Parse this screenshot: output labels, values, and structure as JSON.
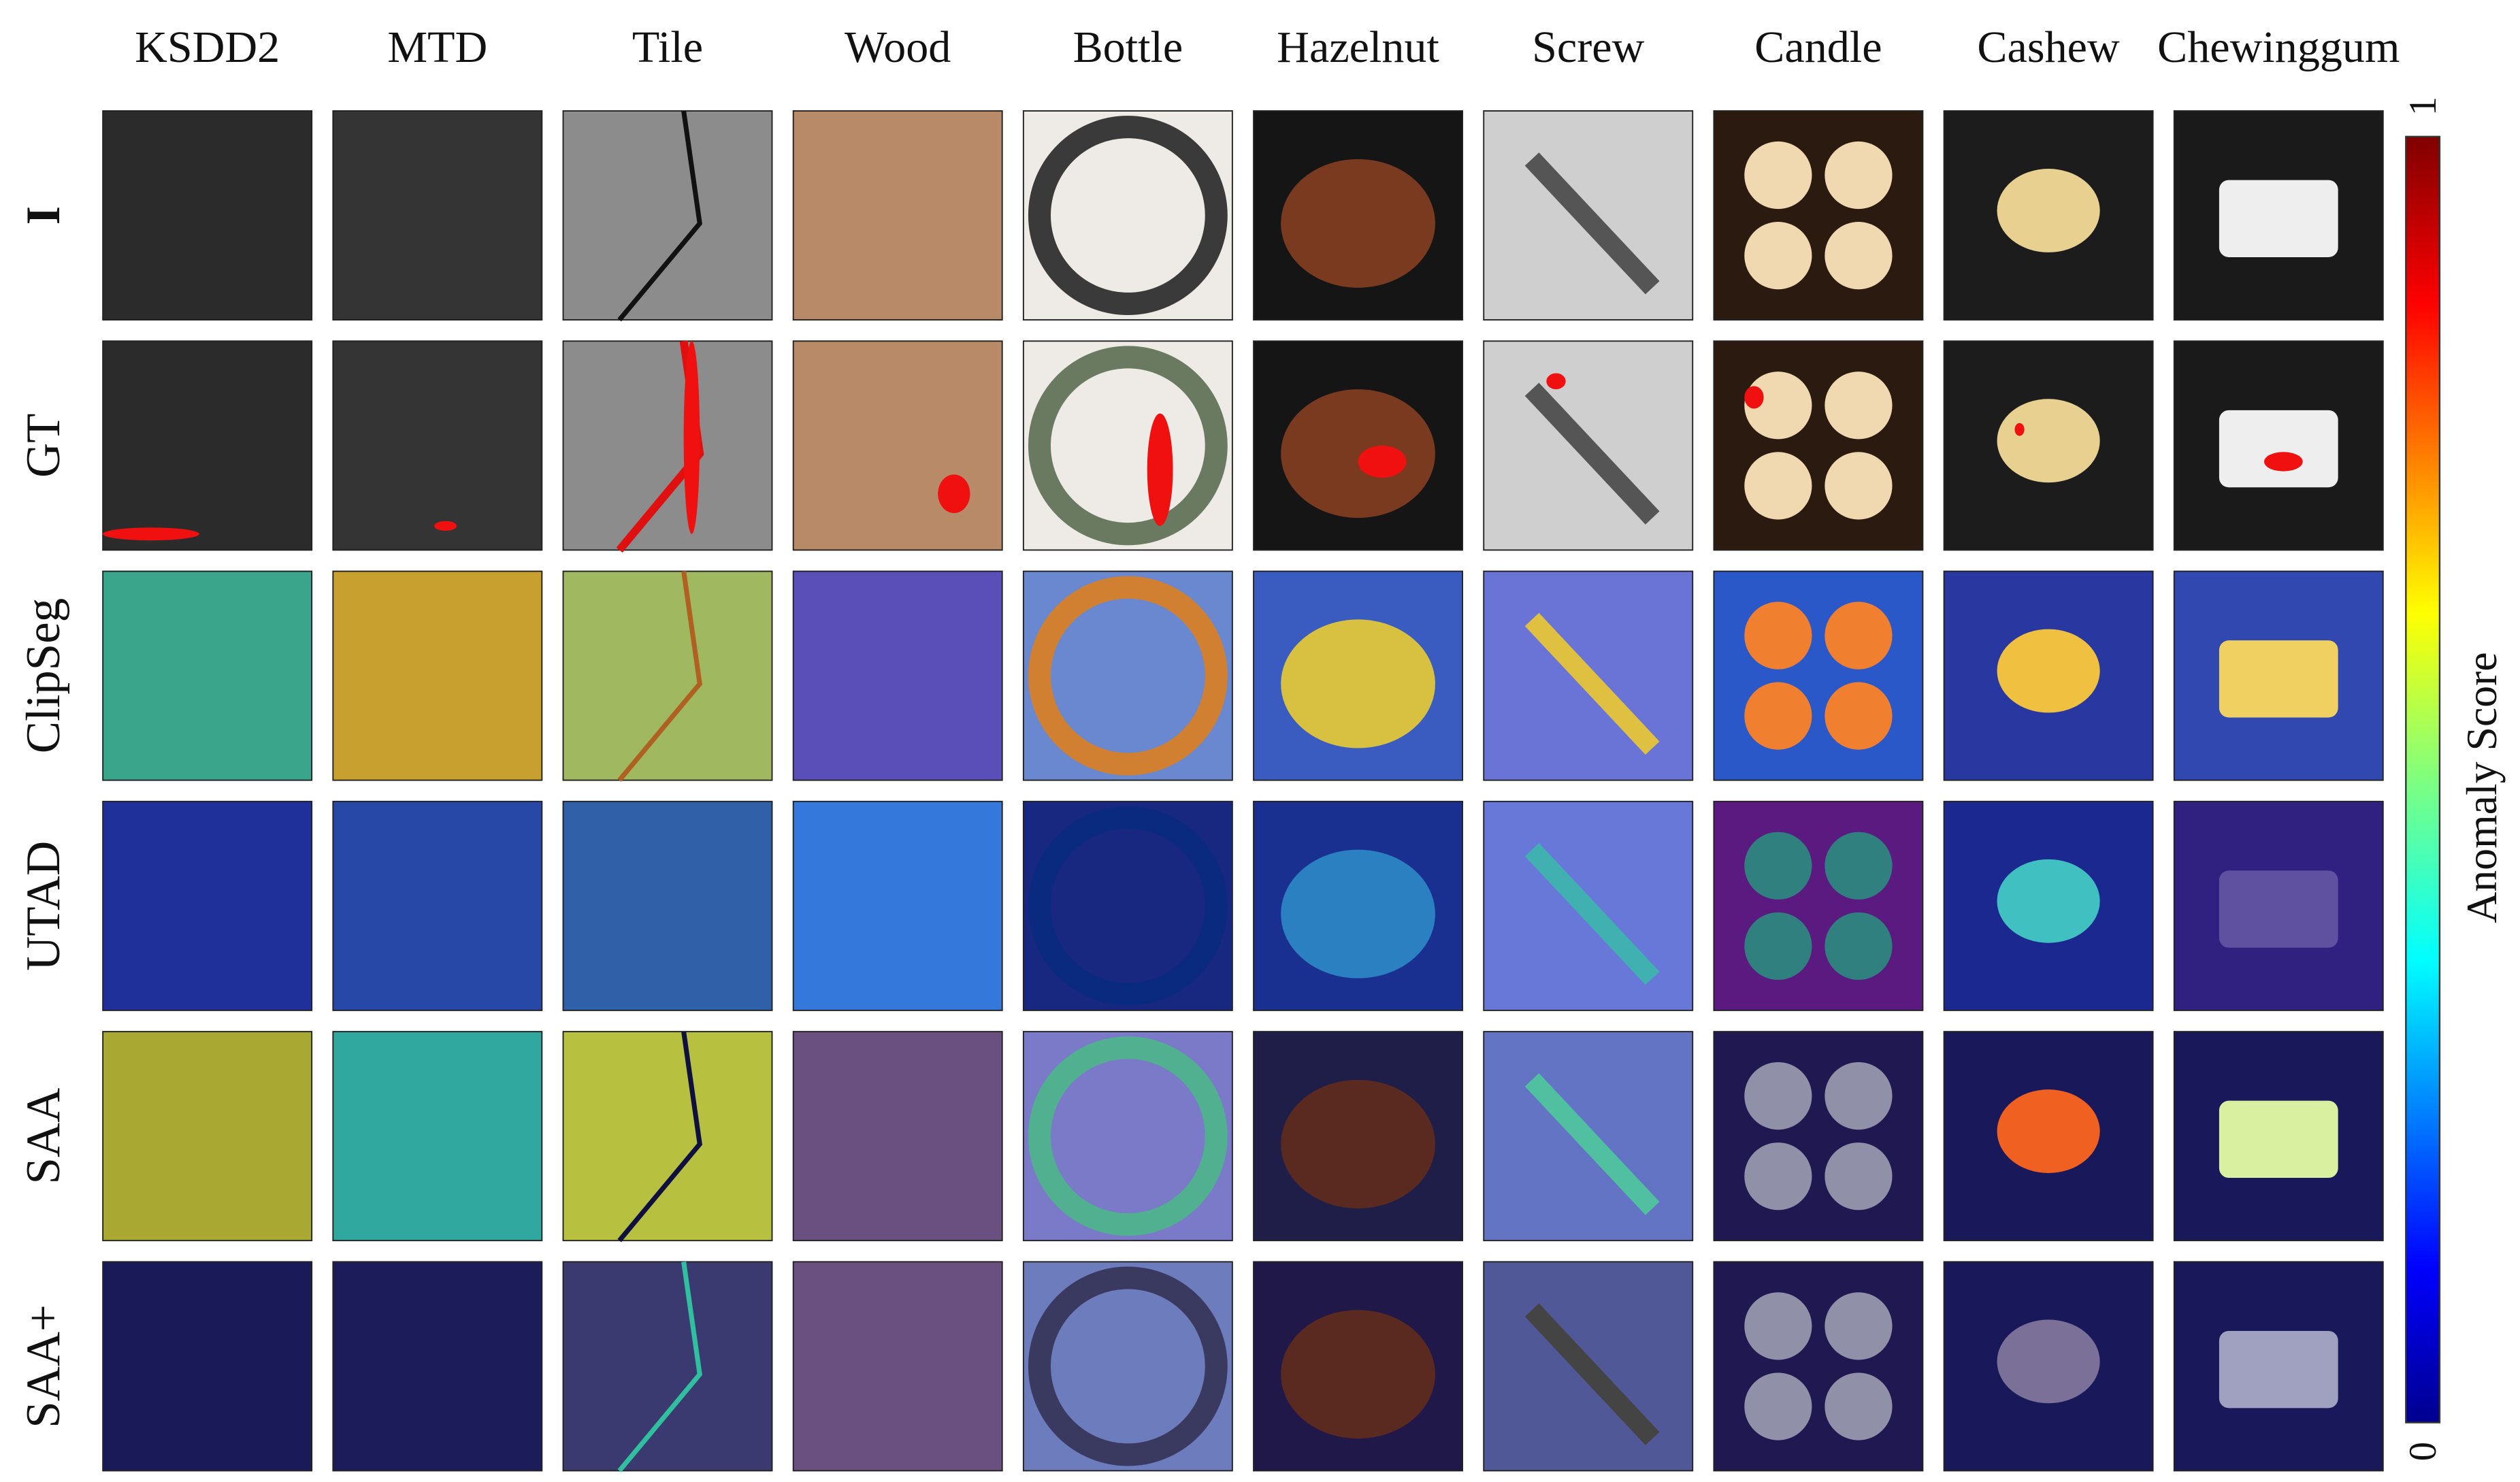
{
  "columns": [
    "KSDD2",
    "MTD",
    "Tile",
    "Wood",
    "Bottle",
    "Hazelnut",
    "Screw",
    "Candle",
    "Cashew",
    "Chewinggum"
  ],
  "rows": [
    "I",
    "GT",
    "ClipSeg",
    "UTAD",
    "SAA",
    "SAA+"
  ],
  "colorbar": {
    "label": "Anomaly Score",
    "top": 1,
    "bottom": 0
  }
}
